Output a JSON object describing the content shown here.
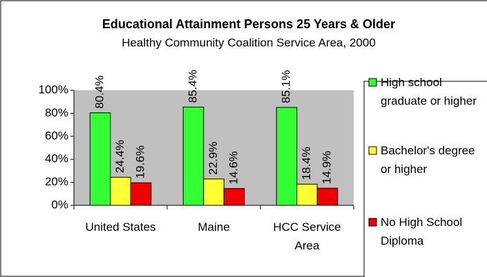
{
  "chart_data": {
    "type": "bar",
    "title": "Educational Attainment Persons 25 Years & Older",
    "subtitle": "Healthy Community Coalition Service Area, 2000",
    "categories": [
      "United States",
      "Maine",
      "HCC Service Area"
    ],
    "series": [
      {
        "name": "High school graduate or higher",
        "color": "#33ff33",
        "values": [
          80.4,
          85.4,
          85.1
        ],
        "value_labels": [
          "80.4%",
          "85.4%",
          "85.1%"
        ]
      },
      {
        "name": "Bachelor's degree or higher",
        "color": "#ffff33",
        "values": [
          24.4,
          22.9,
          18.4
        ],
        "value_labels": [
          "24.4%",
          "22.9%",
          "18.4%"
        ]
      },
      {
        "name": "No High School Diploma",
        "color": "#ee0000",
        "values": [
          19.6,
          14.6,
          14.9
        ],
        "value_labels": [
          "19.6%",
          "14.6%",
          "14.9%"
        ]
      }
    ],
    "ylim": [
      0,
      100
    ],
    "yticks": [
      {
        "value": 0,
        "label": "0%"
      },
      {
        "value": 20,
        "label": "20%"
      },
      {
        "value": 40,
        "label": "40%"
      },
      {
        "value": 60,
        "label": "60%"
      },
      {
        "value": 80,
        "label": "80%"
      },
      {
        "value": 100,
        "label": "100%"
      }
    ],
    "plot_background": "#c0c0c0",
    "legend": "right"
  }
}
